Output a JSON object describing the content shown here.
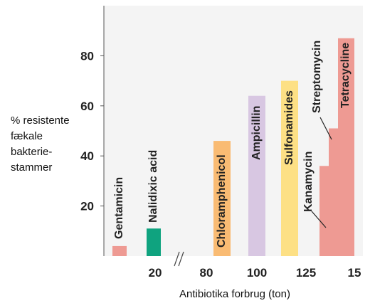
{
  "chart_data": {
    "type": "bar",
    "ylabel_lines": [
      "% resistente",
      "fækale",
      "bakterie-",
      "stammer"
    ],
    "xlabel": "Antibiotika forbrug (ton)",
    "ylim": [
      0,
      100
    ],
    "yticks": [
      20,
      40,
      60,
      80
    ],
    "xticks": [
      "20",
      "80",
      "100",
      "125",
      "15"
    ],
    "axis_break": "//",
    "grid": false,
    "background": "#f4f4f4",
    "bars": [
      {
        "label": "Gentamicin",
        "value": 4,
        "color": "#ee9a93"
      },
      {
        "label": "Nalidixic acid",
        "value": 11,
        "color": "#0fa37f"
      },
      {
        "label": "Chloramphenicol",
        "value": 46,
        "color": "#f9bb73"
      },
      {
        "label": "Ampicillin",
        "value": 64,
        "color": "#d8c7e2"
      },
      {
        "label": "Sulfonamides",
        "value": 70,
        "color": "#fde085"
      },
      {
        "label": "Kanamycin",
        "value": 36,
        "color": "#ee9a93"
      },
      {
        "label": "Streptomycin",
        "value": 51,
        "color": "#ee9a93"
      },
      {
        "label": "Tetracycline",
        "value": 87,
        "color": "#ee9a93"
      }
    ]
  }
}
